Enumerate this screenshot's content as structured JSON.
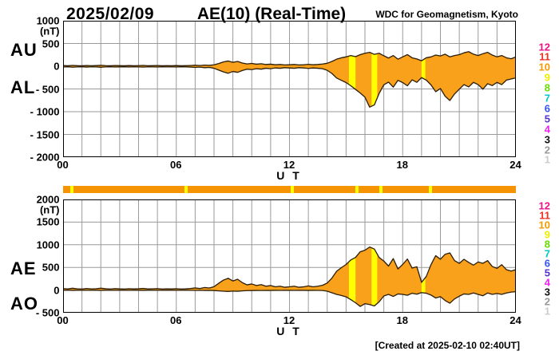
{
  "header": {
    "date": "2025/02/09",
    "title": "AE(10) (Real-Time)",
    "source": "WDC for Geomagnetism, Kyoto"
  },
  "footer": {
    "created": "[Created at 2025-02-10 02:40UT]"
  },
  "colors": {
    "fill": "#f9a11b",
    "band": "#ffff00",
    "outline": "#2b1d05",
    "grid": "#9a9a9a",
    "border": "#000000",
    "bar": "#f59400",
    "bar_mark": "#ffff00"
  },
  "legend": {
    "items": [
      {
        "label": "12",
        "color": "#ee1289"
      },
      {
        "label": "11",
        "color": "#f23220"
      },
      {
        "label": "10",
        "color": "#f59a00"
      },
      {
        "label": "9",
        "color": "#eded00"
      },
      {
        "label": "8",
        "color": "#66dd00"
      },
      {
        "label": "7",
        "color": "#00c8c8"
      },
      {
        "label": "6",
        "color": "#3355ee"
      },
      {
        "label": "5",
        "color": "#5533cc"
      },
      {
        "label": "4",
        "color": "#ee22ee"
      },
      {
        "label": "3",
        "color": "#111111"
      },
      {
        "label": "2",
        "color": "#999999"
      },
      {
        "label": "1",
        "color": "#cccccc"
      }
    ]
  },
  "activity_bar": {
    "marks_hours": [
      0.5,
      6.55,
      12.15,
      15.6,
      16.85,
      19.5
    ]
  },
  "chart_data": [
    {
      "type": "area",
      "title": "AU / AL auroral electrojet indices, 1-min, 24h UT",
      "x_start": 0,
      "x_step": 0.25,
      "x_unit": "hour (UT)",
      "xlabel": "U T",
      "x_ticks": [
        {
          "label": "00",
          "hour": 0
        },
        {
          "label": "06",
          "hour": 6
        },
        {
          "label": "12",
          "hour": 12
        },
        {
          "label": "18",
          "hour": 18
        },
        {
          "label": "24",
          "hour": 24
        }
      ],
      "unit": "(nT)",
      "ylim": [
        -2000,
        1000
      ],
      "y_ticks": [
        {
          "label": "1000",
          "value": 1000
        },
        {
          "label": "500",
          "value": 500
        },
        {
          "label": "0",
          "value": 0
        },
        {
          "label": "- 500",
          "value": -500
        },
        {
          "label": "- 1000",
          "value": -1000
        },
        {
          "label": "- 1500",
          "value": -1500
        },
        {
          "label": "- 2000",
          "value": -2000
        }
      ],
      "yellow_bands_hours": [
        [
          15.15,
          15.5
        ],
        [
          16.35,
          16.65
        ],
        [
          19.0,
          19.2
        ]
      ],
      "series": [
        {
          "name": "AU",
          "values": [
            15,
            10,
            18,
            12,
            10,
            16,
            11,
            14,
            19,
            13,
            10,
            15,
            12,
            10,
            14,
            11,
            13,
            17,
            11,
            12,
            15,
            10,
            13,
            11,
            14,
            10,
            12,
            16,
            21,
            15,
            24,
            19,
            30,
            60,
            95,
            115,
            85,
            105,
            70,
            50,
            62,
            45,
            55,
            38,
            45,
            32,
            38,
            28,
            32,
            38,
            28,
            32,
            42,
            32,
            38,
            48,
            65,
            105,
            155,
            185,
            205,
            235,
            210,
            255,
            285,
            305,
            260,
            285,
            230,
            180,
            235,
            155,
            205,
            255,
            185,
            160,
            120,
            185,
            205,
            245,
            225,
            265,
            205,
            235,
            255,
            295,
            320,
            265,
            235,
            275,
            305,
            245,
            205,
            235,
            185,
            165,
            205
          ]
        },
        {
          "name": "AL",
          "values": [
            -18,
            -12,
            -22,
            -15,
            -12,
            -19,
            -13,
            -16,
            -23,
            -16,
            -12,
            -18,
            -14,
            -12,
            -17,
            -13,
            -15,
            -20,
            -13,
            -15,
            -18,
            -12,
            -15,
            -13,
            -17,
            -12,
            -14,
            -19,
            -26,
            -20,
            -32,
            -26,
            -45,
            -85,
            -125,
            -155,
            -115,
            -135,
            -95,
            -65,
            -75,
            -55,
            -65,
            -45,
            -55,
            -38,
            -45,
            -32,
            -38,
            -45,
            -32,
            -38,
            -48,
            -38,
            -45,
            -55,
            -90,
            -160,
            -260,
            -310,
            -360,
            -430,
            -510,
            -590,
            -680,
            -900,
            -850,
            -600,
            -410,
            -350,
            -460,
            -310,
            -360,
            -430,
            -300,
            -355,
            -250,
            -305,
            -410,
            -560,
            -490,
            -660,
            -755,
            -610,
            -505,
            -405,
            -455,
            -355,
            -405,
            -505,
            -385,
            -425,
            -355,
            -405,
            -305,
            -280,
            -255
          ]
        }
      ]
    },
    {
      "type": "area",
      "title": "AE / AO auroral electrojet indices, 1-min, 24h UT",
      "x_start": 0,
      "x_step": 0.25,
      "x_unit": "hour (UT)",
      "xlabel": "U T",
      "x_ticks": [
        {
          "label": "00",
          "hour": 0
        },
        {
          "label": "06",
          "hour": 6
        },
        {
          "label": "12",
          "hour": 12
        },
        {
          "label": "18",
          "hour": 18
        },
        {
          "label": "24",
          "hour": 24
        }
      ],
      "unit": "(nT)",
      "ylim": [
        -500,
        2000
      ],
      "y_ticks": [
        {
          "label": "2000",
          "value": 2000
        },
        {
          "label": "1500",
          "value": 1500
        },
        {
          "label": "1000",
          "value": 1000
        },
        {
          "label": "500",
          "value": 500
        },
        {
          "label": "0",
          "value": 0
        },
        {
          "label": "- 500",
          "value": -500
        }
      ],
      "yellow_bands_hours": [
        [
          15.15,
          15.5
        ],
        [
          16.35,
          16.65
        ],
        [
          19.0,
          19.2
        ]
      ],
      "series": [
        {
          "name": "AE",
          "values": [
            33,
            25,
            40,
            28,
            24,
            35,
            26,
            30,
            42,
            29,
            24,
            33,
            27,
            24,
            31,
            25,
            29,
            37,
            25,
            28,
            33,
            24,
            28,
            25,
            31,
            24,
            27,
            35,
            47,
            35,
            56,
            45,
            75,
            150,
            220,
            260,
            200,
            240,
            165,
            115,
            135,
            100,
            120,
            85,
            100,
            72,
            85,
            62,
            72,
            85,
            62,
            72,
            92,
            72,
            85,
            105,
            155,
            265,
            415,
            495,
            565,
            665,
            720,
            845,
            880,
            950,
            905,
            720,
            640,
            530,
            695,
            465,
            565,
            685,
            485,
            515,
            170,
            300,
            560,
            760,
            680,
            790,
            820,
            650,
            590,
            680,
            610,
            550,
            620,
            590,
            650,
            520,
            480,
            560,
            450,
            420,
            450
          ]
        },
        {
          "name": "AO",
          "values": [
            -5,
            -3,
            -6,
            -4,
            -3,
            -5,
            -4,
            -4,
            -6,
            -4,
            -3,
            -5,
            -4,
            -3,
            -5,
            -4,
            -4,
            -6,
            -4,
            -4,
            -5,
            -3,
            -4,
            -4,
            -5,
            -3,
            -4,
            -5,
            -7,
            -5,
            -8,
            -7,
            -10,
            -18,
            -25,
            -30,
            -22,
            -26,
            -18,
            -12,
            -10,
            -8,
            -9,
            -7,
            -8,
            -6,
            -7,
            -5,
            -6,
            -7,
            -5,
            -6,
            -8,
            -6,
            -7,
            -9,
            -25,
            -60,
            -95,
            -120,
            -150,
            -210,
            -280,
            -360,
            -300,
            -320,
            -350,
            -260,
            -130,
            -95,
            -140,
            -85,
            -95,
            -115,
            -70,
            -90,
            -55,
            -70,
            -110,
            -175,
            -145,
            -230,
            -290,
            -195,
            -135,
            -85,
            -95,
            -65,
            -95,
            -125,
            -65,
            -95,
            -75,
            -95,
            -65,
            -45,
            -35
          ]
        }
      ]
    }
  ]
}
